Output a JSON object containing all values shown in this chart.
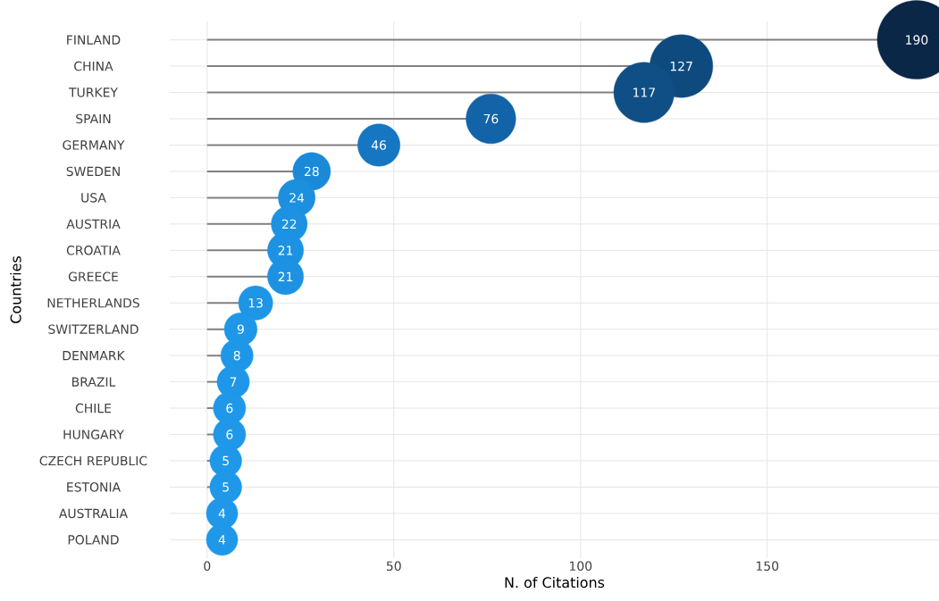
{
  "chart_data": {
    "type": "lollipop",
    "orientation": "horizontal",
    "xlabel": "N. of Citations",
    "ylabel": "Countries",
    "categories": [
      "FINLAND",
      "CHINA",
      "TURKEY",
      "SPAIN",
      "GERMANY",
      "SWEDEN",
      "USA",
      "AUSTRIA",
      "CROATIA",
      "GREECE",
      "NETHERLANDS",
      "SWITZERLAND",
      "DENMARK",
      "BRAZIL",
      "CHILE",
      "HUNGARY",
      "CZECH REPUBLIC",
      "ESTONIA",
      "AUSTRALIA",
      "POLAND"
    ],
    "values": [
      190,
      127,
      117,
      76,
      46,
      28,
      24,
      22,
      21,
      21,
      13,
      9,
      8,
      7,
      6,
      6,
      5,
      5,
      4,
      4
    ],
    "sizes": [
      1,
      0.64,
      0.59,
      0.4,
      0.29,
      0.23,
      0.22,
      0.21,
      0.21,
      0.21,
      0.19,
      0.175,
      0.17,
      0.17,
      0.17,
      0.17,
      0.165,
      0.165,
      0.16,
      0.16
    ],
    "colors": [
      "#0b2747",
      "#0f4a7e",
      "#0f4f86",
      "#1363a8",
      "#1676c2",
      "#1a8ad8",
      "#1c8fdf",
      "#1d92e2",
      "#1d92e2",
      "#1d92e2",
      "#1e95e5",
      "#1f97e8",
      "#1f97e8",
      "#1f97e8",
      "#1f98e9",
      "#1f98e9",
      "#1f98e9",
      "#1f98e9",
      "#1f98ea",
      "#1f98ea"
    ],
    "xlim": [
      -10,
      196
    ],
    "xticks": [
      0,
      50,
      100,
      150
    ],
    "grid": true,
    "data_labels": true
  }
}
